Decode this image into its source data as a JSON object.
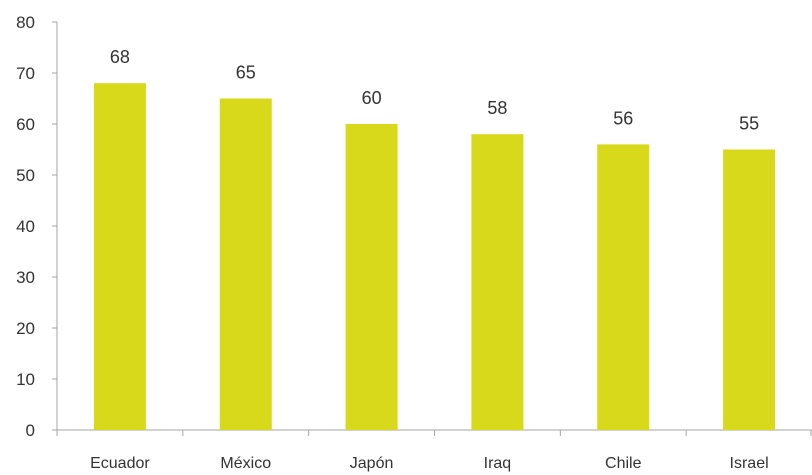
{
  "chart_data": {
    "type": "bar",
    "title": "",
    "xlabel": "",
    "ylabel": "",
    "categories": [
      "Ecuador",
      "México",
      "Japón",
      "Iraq",
      "Chile",
      "Israel"
    ],
    "values": [
      68,
      65,
      60,
      58,
      56,
      55
    ],
    "data_labels": [
      "68",
      "65",
      "60",
      "58",
      "56",
      "55"
    ],
    "ylim": [
      0,
      80
    ],
    "y_ticks": [
      0,
      10,
      20,
      30,
      40,
      50,
      60,
      70,
      80
    ],
    "grid": false,
    "legend": "none",
    "bar_color": "#d9d91c"
  }
}
